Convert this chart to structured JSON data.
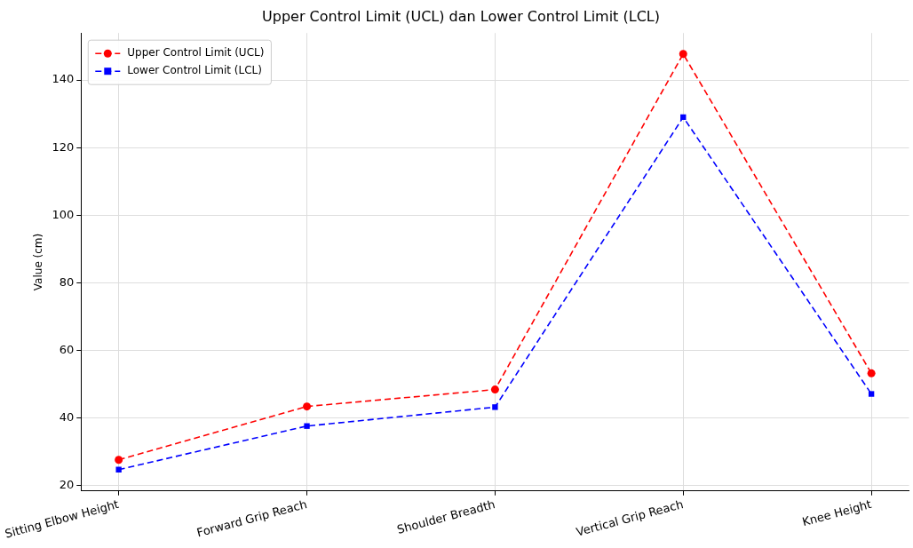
{
  "chart_data": {
    "type": "line",
    "title": "Upper Control Limit (UCL) dan Lower Control Limit (LCL)",
    "ylabel": "Value (cm)",
    "categories": [
      "Sitting Elbow Height",
      "Forward Grip Reach",
      "Shoulder Breadth",
      "Vertical Grip Reach",
      "Knee Height"
    ],
    "series": [
      {
        "name": "Upper Control Limit (UCL)",
        "color": "#ff0000",
        "values": [
          27.6,
          43.4,
          48.4,
          147.7,
          53.2
        ],
        "marker": "circle"
      },
      {
        "name": "Lower Control Limit (LCL)",
        "color": "#0000ff",
        "values": [
          24.7,
          37.6,
          43.2,
          129.0,
          47.1
        ],
        "marker": "square"
      }
    ],
    "ylim": [
      18.4,
      153.9
    ],
    "yticks": [
      20,
      40,
      60,
      80,
      100,
      120,
      140
    ],
    "grid": true,
    "legend": "top left",
    "line_style": "dashed"
  }
}
